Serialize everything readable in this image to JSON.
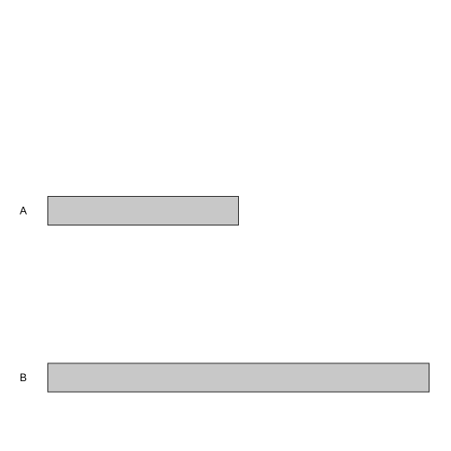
{
  "chart_data": {
    "type": "bar",
    "orientation": "horizontal",
    "categories": [
      "A",
      "B"
    ],
    "values": [
      50,
      100
    ],
    "xlim": [
      0,
      100
    ],
    "title": "",
    "xlabel": "",
    "ylabel": "",
    "grid": false,
    "axes_visible": false,
    "bar_color": "#c8c8c8",
    "bar_edge_color": "#333333"
  }
}
